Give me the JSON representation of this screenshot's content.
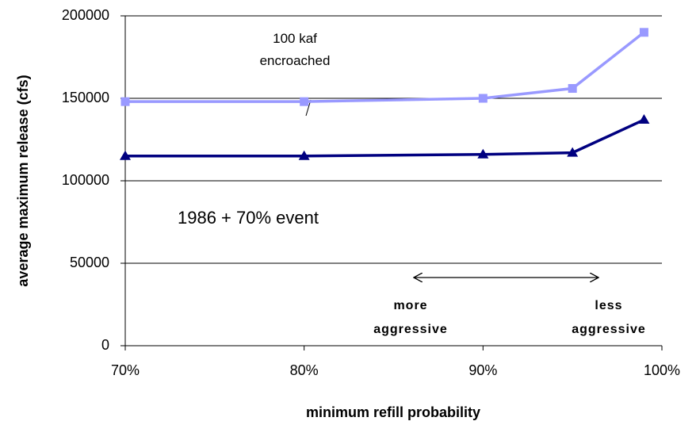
{
  "chart_data": {
    "type": "line",
    "y_label": "average maximum release (cfs)",
    "x_label": "minimum refill probability",
    "x": [
      70,
      80,
      90,
      95,
      99
    ],
    "series": [
      {
        "name": "100 kaf encroached",
        "color": "#9999ff",
        "marker": "square",
        "values": [
          148000,
          148000,
          150000,
          156000,
          190000
        ]
      },
      {
        "color": "#000080",
        "marker": "triangle",
        "values": [
          115000,
          115000,
          116000,
          117000,
          137000
        ]
      }
    ],
    "xlim": [
      70,
      100
    ],
    "xticks": [
      {
        "value": 70,
        "label": "70%"
      },
      {
        "value": 80,
        "label": "80%"
      },
      {
        "value": 90,
        "label": "90%"
      },
      {
        "value": 100,
        "label": "100%"
      }
    ],
    "ylim": [
      0,
      200000
    ],
    "yticks": [
      0,
      50000,
      100000,
      150000,
      200000
    ],
    "grid": true,
    "annotations": [
      {
        "text": "1986 + 70% event"
      },
      {
        "lines": [
          "more",
          "aggressive"
        ]
      },
      {
        "lines": [
          "less",
          "aggressive"
        ]
      }
    ]
  }
}
